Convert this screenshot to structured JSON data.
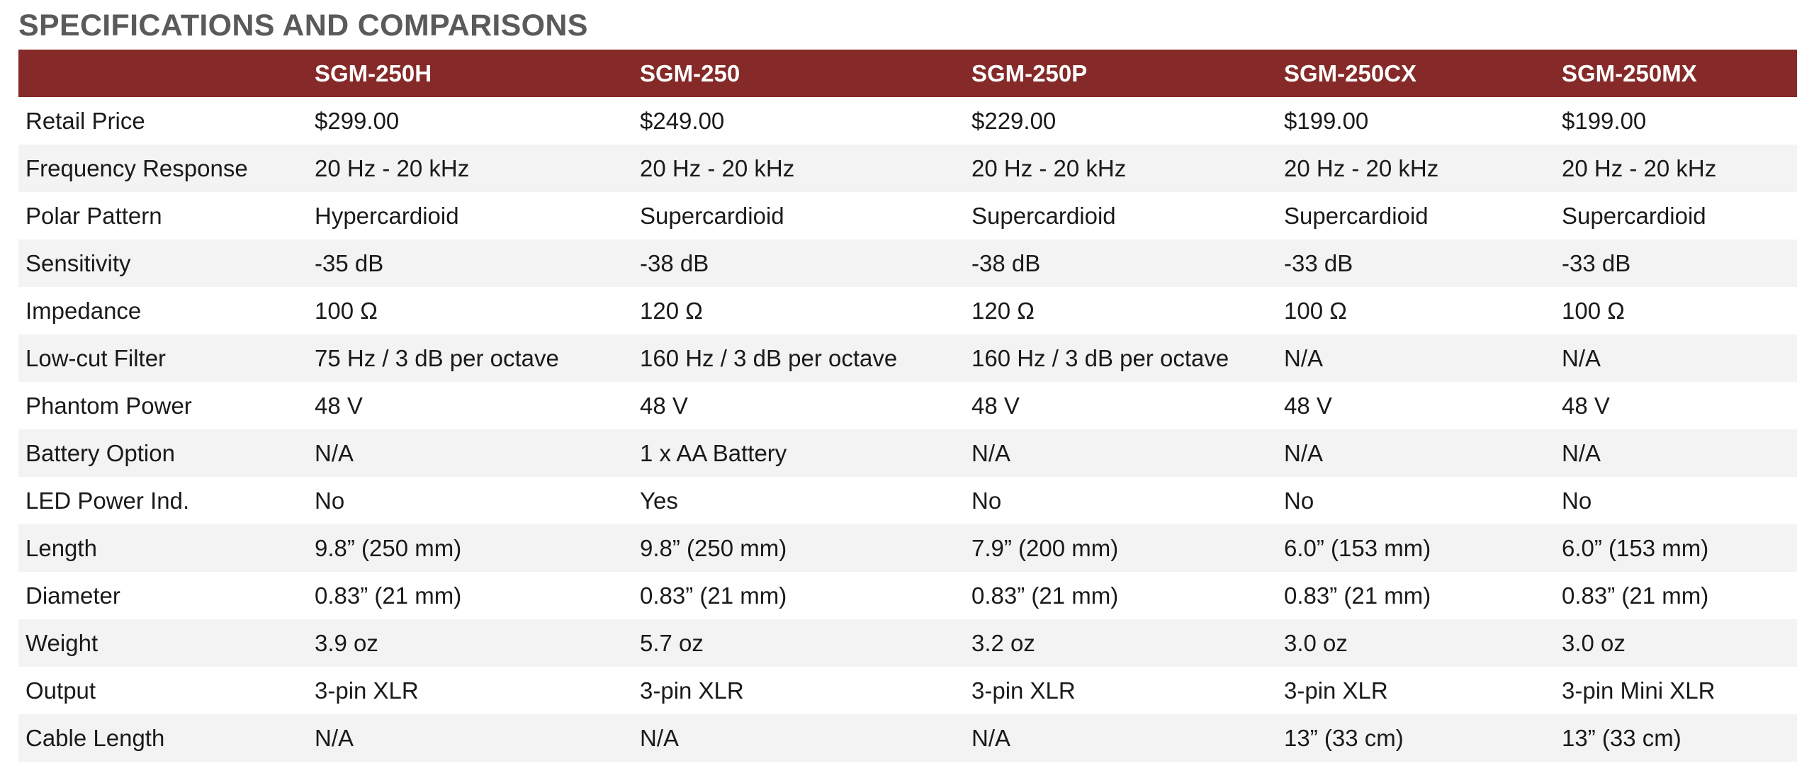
{
  "title": "SPECIFICATIONS AND COMPARISONS",
  "header": {
    "corner": "",
    "models": [
      "SGM-250H",
      "SGM-250",
      "SGM-250P",
      "SGM-250CX",
      "SGM-250MX"
    ]
  },
  "rows": [
    {
      "label": "Retail Price",
      "values": [
        "$299.00",
        "$249.00",
        "$229.00",
        "$199.00",
        "$199.00"
      ]
    },
    {
      "label": "Frequency Response",
      "values": [
        "20 Hz - 20 kHz",
        "20 Hz - 20 kHz",
        "20 Hz - 20 kHz",
        "20 Hz - 20 kHz",
        "20 Hz - 20 kHz"
      ]
    },
    {
      "label": "Polar Pattern",
      "values": [
        "Hypercardioid",
        "Supercardioid",
        "Supercardioid",
        "Supercardioid",
        "Supercardioid"
      ]
    },
    {
      "label": "Sensitivity",
      "values": [
        "-35 dB",
        "-38 dB",
        "-38 dB",
        "-33 dB",
        "-33 dB"
      ]
    },
    {
      "label": "Impedance",
      "values": [
        "100 Ω",
        "120 Ω",
        "120 Ω",
        "100 Ω",
        "100 Ω"
      ]
    },
    {
      "label": "Low-cut Filter",
      "values": [
        "75 Hz / 3 dB per octave",
        "160 Hz / 3 dB per octave",
        "160 Hz / 3 dB per octave",
        "N/A",
        "N/A"
      ]
    },
    {
      "label": "Phantom Power",
      "values": [
        "48 V",
        "48 V",
        "48 V",
        "48 V",
        "48 V"
      ]
    },
    {
      "label": "Battery Option",
      "values": [
        "N/A",
        "1 x AA Battery",
        "N/A",
        "N/A",
        "N/A"
      ]
    },
    {
      "label": "LED Power Ind.",
      "values": [
        "No",
        "Yes",
        "No",
        "No",
        "No"
      ]
    },
    {
      "label": "Length",
      "values": [
        "9.8” (250 mm)",
        "9.8” (250 mm)",
        "7.9” (200 mm)",
        "6.0” (153 mm)",
        "6.0” (153 mm)"
      ]
    },
    {
      "label": "Diameter",
      "values": [
        "0.83” (21 mm)",
        "0.83” (21 mm)",
        "0.83” (21 mm)",
        "0.83” (21 mm)",
        "0.83” (21 mm)"
      ]
    },
    {
      "label": "Weight",
      "values": [
        "3.9 oz",
        "5.7 oz",
        "3.2 oz",
        "3.0 oz",
        "3.0 oz"
      ]
    },
    {
      "label": "Output",
      "values": [
        "3-pin XLR",
        "3-pin XLR",
        "3-pin XLR",
        "3-pin XLR",
        "3-pin Mini XLR"
      ]
    },
    {
      "label": "Cable Length",
      "values": [
        "N/A",
        "N/A",
        "N/A",
        "13” (33 cm)",
        "13” (33 cm)"
      ]
    }
  ],
  "colors": {
    "header_background": "#852a28",
    "header_text": "#ffffff",
    "title_text": "#5a5a5a",
    "stripe": "#f3f3f3"
  }
}
